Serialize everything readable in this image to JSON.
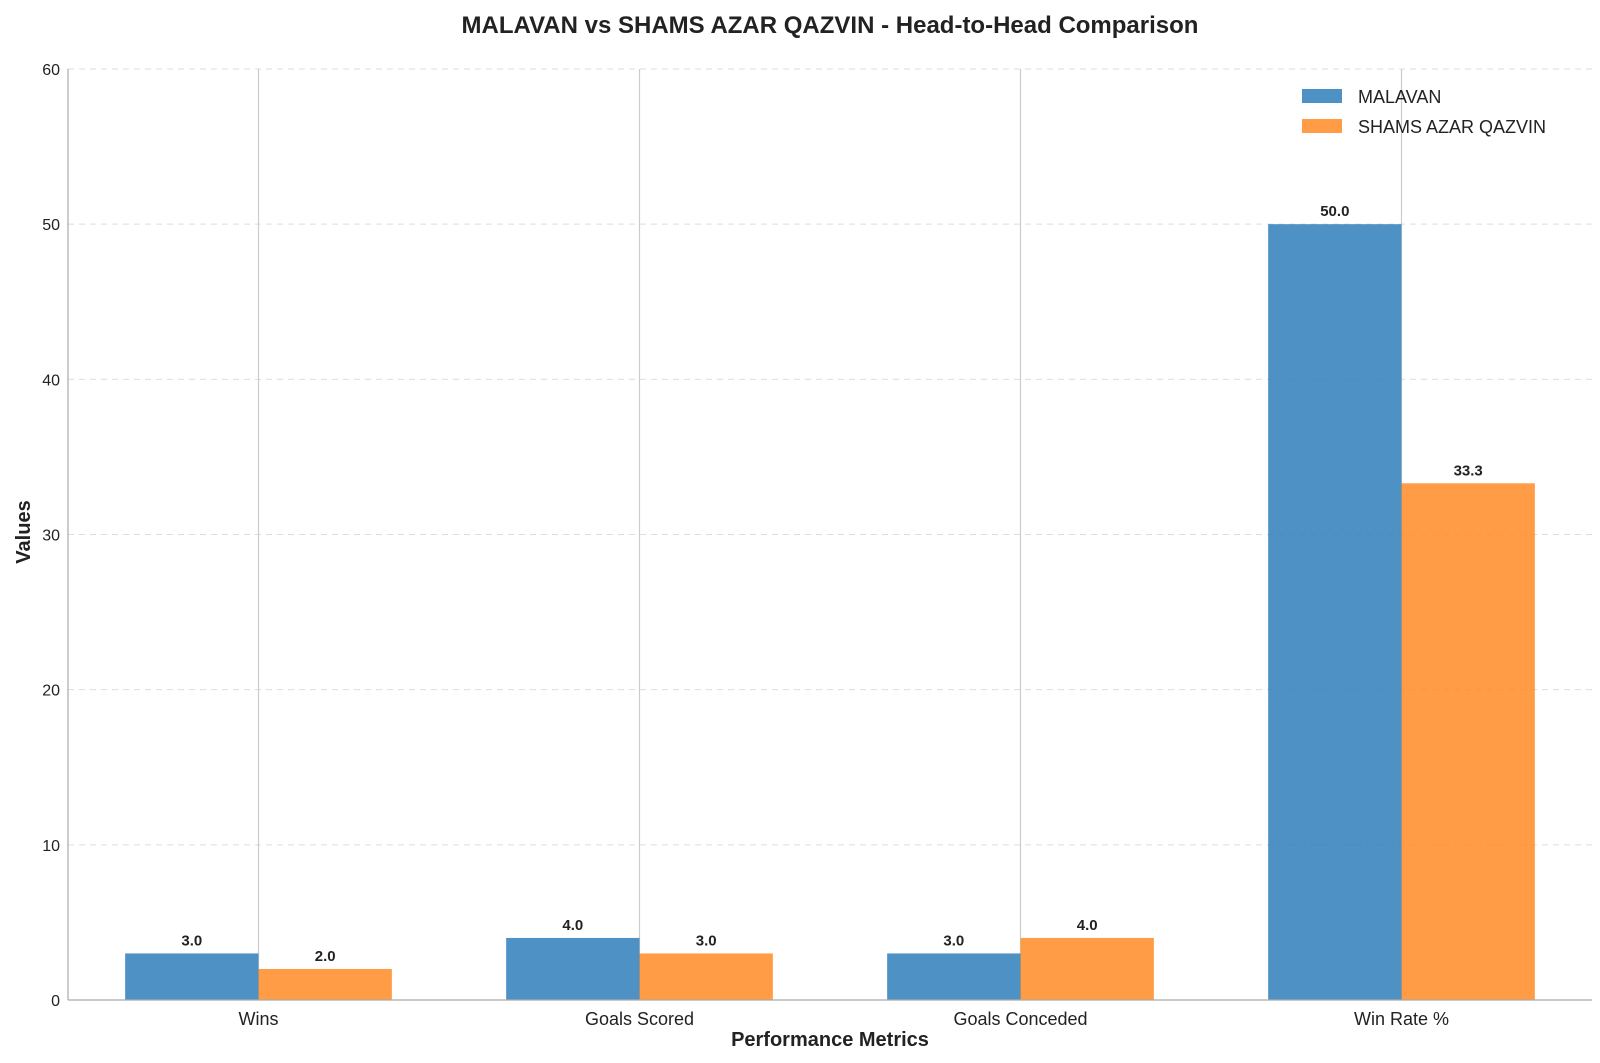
{
  "chart_data": {
    "type": "bar",
    "title": "MALAVAN vs SHAMS AZAR QAZVIN - Head-to-Head Comparison",
    "xlabel": "Performance Metrics",
    "ylabel": "Values",
    "categories": [
      "Wins",
      "Goals Scored",
      "Goals Conceded",
      "Win Rate %"
    ],
    "series": [
      {
        "name": "MALAVAN",
        "values": [
          3.0,
          4.0,
          3.0,
          50.0
        ],
        "color": "#2f7fbb",
        "labels": [
          "3.0",
          "4.0",
          "3.0",
          "50.0"
        ]
      },
      {
        "name": "SHAMS AZAR QAZVIN",
        "values": [
          2.0,
          3.0,
          4.0,
          33.3
        ],
        "color": "#ff8b25",
        "labels": [
          "2.0",
          "3.0",
          "4.0",
          "33.3"
        ]
      }
    ],
    "ylim": [
      0,
      60
    ],
    "yticks": [
      "0",
      "10",
      "20",
      "30",
      "40",
      "50",
      "60"
    ],
    "grid": "y-dashed",
    "legend_position": "top-right"
  }
}
